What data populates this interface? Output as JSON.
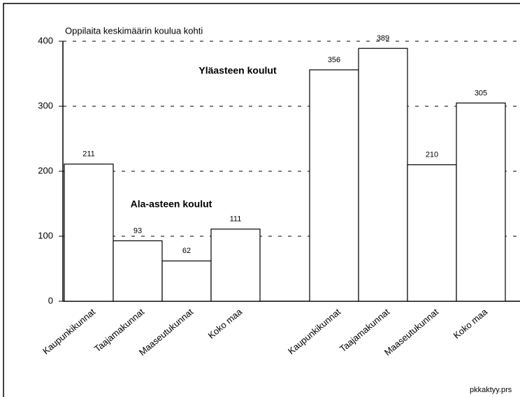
{
  "chart_data": {
    "type": "bar",
    "y_label": "Oppilaita keskimäärin koulua kohti",
    "categories": [
      "Kaupunkikunnat",
      "Taajamakunnat",
      "Maaseutukunnat",
      "Koko maa"
    ],
    "series": [
      {
        "name": "Ala-asteen koulut",
        "color": "#ffffff",
        "values": [
          211,
          93,
          62,
          111
        ]
      },
      {
        "name": "Yläasteen koulut",
        "color": "#ffffff",
        "values": [
          356,
          389,
          210,
          305
        ]
      }
    ],
    "ylim": [
      0,
      400
    ],
    "yticks": [
      0,
      100,
      200,
      300,
      400
    ],
    "grid": true,
    "footer": "pkkaktyy.prs"
  }
}
